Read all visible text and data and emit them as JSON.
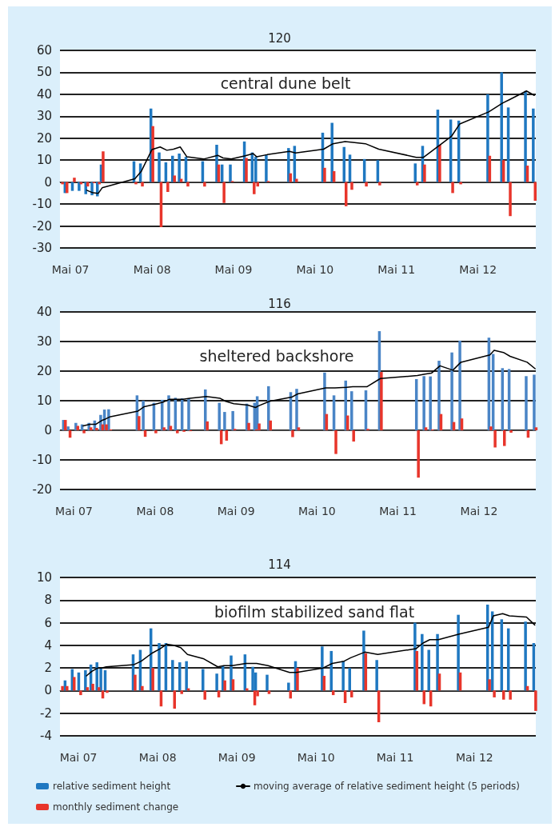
{
  "chart_data": [
    {
      "type": "bar",
      "title": "120",
      "annotations": [
        "central dune belt"
      ],
      "xlim": [
        "2007-03-15",
        "2013-01-15"
      ],
      "xticks": [
        {
          "value": "2007-05-01",
          "label": "Mai 07"
        },
        {
          "value": "2008-05-01",
          "label": "Mai 08"
        },
        {
          "value": "2009-05-01",
          "label": "Mai 09"
        },
        {
          "value": "2010-05-01",
          "label": "Mai 10"
        },
        {
          "value": "2011-05-01",
          "label": "Mai 11"
        },
        {
          "value": "2012-05-01",
          "label": "Mai 12"
        }
      ],
      "ylim": [
        -30,
        60
      ],
      "yticks": [
        -30,
        -20,
        -10,
        0,
        10,
        20,
        30,
        40,
        50,
        60
      ],
      "grid": "y",
      "marker": "none",
      "x": [
        "2007-03-22",
        "2007-04-11",
        "2007-05-14",
        "2007-06-13",
        "2007-07-13",
        "2007-08-10",
        "2007-09-03",
        "2007-09-20",
        "2008-02-14",
        "2008-03-14",
        "2008-04-30",
        "2008-06-06",
        "2008-07-06",
        "2008-08-05",
        "2008-09-04",
        "2008-10-04",
        "2008-12-18",
        "2009-02-19",
        "2009-03-15",
        "2009-04-21",
        "2009-06-23",
        "2009-07-28",
        "2009-08-13",
        "2009-09-29",
        "2010-01-07",
        "2010-02-03",
        "2010-06-09",
        "2010-07-21",
        "2010-09-13",
        "2010-10-09",
        "2010-12-13",
        "2011-02-11",
        "2011-07-29",
        "2011-08-31",
        "2011-11-07",
        "2012-01-04",
        "2012-02-09",
        "2012-06-18",
        "2012-08-19",
        "2012-09-18",
        "2012-12-04",
        "2013-01-08"
      ],
      "series": [
        {
          "color": "#1f78c1",
          "values": [
            null,
            -5,
            -4,
            -4,
            -5.5,
            -6,
            -6.5,
            8,
            9.5,
            8.5,
            33.5,
            13.5,
            9,
            12,
            13,
            11.5,
            9.5,
            17,
            8,
            8,
            18.5,
            13.5,
            11.5,
            12.5,
            15.5,
            16.5,
            22.5,
            27,
            16,
            12.5,
            10.5,
            10,
            8.5,
            16.5,
            33,
            28.5,
            28,
            40,
            50,
            34,
            41.5,
            33.5
          ]
        },
        {
          "color": "#e8352b",
          "values": [
            -1,
            -5,
            2,
            -1,
            -2,
            -0.5,
            -1,
            14,
            -1,
            -2,
            25.5,
            -20.5,
            -4.5,
            3,
            1.5,
            -2,
            -2,
            8,
            -9.5,
            0.5,
            11,
            -5.5,
            -2,
            0.5,
            4,
            1.5,
            6.5,
            5,
            -11,
            -3.5,
            -2,
            -1.5,
            -1.5,
            8,
            17,
            -5,
            -1,
            12,
            10,
            -15.5,
            7.5,
            -8.5
          ]
        },
        {
          "type": "line",
          "color": "#000000",
          "x": [
            "2007-07-13",
            "2007-08-10",
            "2007-09-03",
            "2007-09-20",
            "2008-02-14",
            "2008-03-14",
            "2008-04-30",
            "2008-06-06",
            "2008-07-06",
            "2008-08-05",
            "2008-09-04",
            "2008-10-04",
            "2008-12-18",
            "2009-02-19",
            "2009-03-15",
            "2009-04-21",
            "2009-06-23",
            "2009-07-28",
            "2009-08-13",
            "2009-09-29",
            "2010-01-07",
            "2010-02-03",
            "2010-06-09",
            "2010-07-21",
            "2010-09-13",
            "2010-10-09",
            "2010-12-13",
            "2011-02-11",
            "2011-07-29",
            "2011-08-31",
            "2011-11-07",
            "2012-01-04",
            "2012-02-09",
            "2012-06-18",
            "2012-08-19",
            "2012-09-18",
            "2012-12-04",
            "2013-01-08"
          ],
          "values": [
            -3.7,
            -4.9,
            -5.1,
            -2.6,
            1.5,
            5,
            14.8,
            16,
            14.5,
            15,
            16,
            11.5,
            10.5,
            12.2,
            11,
            10.5,
            12,
            13,
            11.5,
            12.5,
            14,
            13.3,
            15,
            17.5,
            18.5,
            18.2,
            17.5,
            15,
            11.3,
            11.3,
            16.5,
            21,
            26.5,
            32,
            36,
            37.5,
            41.5,
            39.5
          ]
        }
      ]
    },
    {
      "type": "bar",
      "title": "116",
      "annotations": [
        "sheltered backshore"
      ],
      "xlim": [
        "2007-02-27",
        "2013-01-12"
      ],
      "xticks": [
        {
          "value": "2007-05-01",
          "label": "Mai 07"
        },
        {
          "value": "2008-05-01",
          "label": "Mai 08"
        },
        {
          "value": "2009-05-01",
          "label": "Mai 09"
        },
        {
          "value": "2010-05-01",
          "label": "Mai 10"
        },
        {
          "value": "2011-05-01",
          "label": "Mai 11"
        },
        {
          "value": "2012-05-01",
          "label": "Mai 12"
        }
      ],
      "ylim": [
        -20,
        40
      ],
      "yticks": [
        -20,
        -10,
        0,
        10,
        20,
        30,
        40
      ],
      "grid": "y",
      "marker": "none",
      "x": [
        "2007-03-19",
        "2007-04-09",
        "2007-05-14",
        "2007-06-11",
        "2007-07-12",
        "2007-08-07",
        "2007-09-03",
        "2007-09-20",
        "2007-10-09",
        "2008-02-14",
        "2008-03-13",
        "2008-04-30",
        "2008-06-06",
        "2008-07-06",
        "2008-08-05",
        "2008-09-04",
        "2008-10-04",
        "2008-12-18",
        "2009-02-19",
        "2009-03-15",
        "2009-04-21",
        "2009-06-23",
        "2009-07-28",
        "2009-08-09",
        "2009-09-29",
        "2010-01-07",
        "2010-02-03",
        "2010-06-09",
        "2010-07-21",
        "2010-09-12",
        "2010-10-09",
        "2010-12-12",
        "2011-02-11",
        "2011-07-28",
        "2011-08-31",
        "2011-09-29",
        "2011-11-07",
        "2012-01-04",
        "2012-02-09",
        "2012-06-19",
        "2012-07-08",
        "2012-08-19",
        "2012-09-18",
        "2012-12-04",
        "2013-01-09"
      ],
      "series": [
        {
          "color": "#4a85c6",
          "values": [
            3.5,
            1.3,
            2.5,
            2,
            2.5,
            3.3,
            5.2,
            7,
            7.1,
            11.8,
            10,
            9.3,
            10.3,
            11.8,
            11,
            10.8,
            10.8,
            13.8,
            9.3,
            6.2,
            6.5,
            9,
            9.3,
            11.5,
            14.9,
            12.9,
            14,
            19.5,
            11.8,
            16.8,
            13.2,
            13.5,
            33.5,
            17.3,
            18.3,
            18.2,
            23.5,
            26.3,
            30.3,
            31.3,
            25.8,
            21,
            20.7,
            18.3,
            18.8
          ]
        },
        {
          "color": "#e8352b",
          "values": [
            3.5,
            -2.5,
            1.5,
            -1,
            1,
            0.8,
            2,
            2,
            0.3,
            4.8,
            -2.2,
            -1,
            1,
            1.5,
            -1,
            -0.5,
            -0.3,
            3,
            -4.7,
            -3.5,
            0.5,
            2.5,
            0.3,
            2.3,
            3.3,
            -2.3,
            1,
            5.5,
            -8,
            5,
            -3.8,
            0.5,
            19.7,
            -16,
            1,
            0.3,
            5.5,
            2.8,
            4,
            1.3,
            -5.8,
            -5.3,
            -0.8,
            -2.5,
            1
          ]
        },
        {
          "type": "line",
          "color": "#000000",
          "x": [
            "2007-06-11",
            "2007-07-12",
            "2007-08-07",
            "2007-09-03",
            "2007-09-20",
            "2007-10-09",
            "2008-02-14",
            "2008-03-13",
            "2008-04-30",
            "2008-06-06",
            "2008-07-06",
            "2008-08-05",
            "2008-09-04",
            "2008-10-04",
            "2008-12-18",
            "2009-02-19",
            "2009-03-15",
            "2009-04-21",
            "2009-06-23",
            "2009-07-28",
            "2009-08-09",
            "2009-09-29",
            "2010-01-07",
            "2010-02-03",
            "2010-06-09",
            "2010-07-21",
            "2010-09-12",
            "2010-10-09",
            "2010-12-12",
            "2011-02-11",
            "2011-07-28",
            "2011-08-31",
            "2011-09-29",
            "2011-11-07",
            "2012-01-04",
            "2012-02-09",
            "2012-06-19",
            "2012-07-08",
            "2012-08-19",
            "2012-09-18",
            "2012-12-04",
            "2013-01-09"
          ],
          "values": [
            1.5,
            2,
            2,
            3.3,
            3.8,
            4.5,
            6.5,
            8,
            8.8,
            9.5,
            10.5,
            10.5,
            10.5,
            10.8,
            11.4,
            10.8,
            9.8,
            9,
            8.5,
            7.7,
            8.2,
            9.8,
            11.2,
            12.3,
            14.3,
            14.3,
            14.5,
            14.7,
            14.7,
            17.5,
            18.5,
            19,
            19.3,
            21.8,
            20.3,
            23,
            25.5,
            27,
            26.3,
            25,
            23,
            20.8
          ]
        }
      ]
    },
    {
      "type": "bar",
      "title": "114",
      "annotations": [
        "biofilm stabilized sand flat"
      ],
      "xlim": [
        "2007-02-05",
        "2013-02-08"
      ],
      "xticks": [
        {
          "value": "2007-05-01",
          "label": "Mai 07"
        },
        {
          "value": "2008-05-01",
          "label": "Mai 08"
        },
        {
          "value": "2009-05-01",
          "label": "Mai 09"
        },
        {
          "value": "2010-05-01",
          "label": "Mai 10"
        },
        {
          "value": "2011-05-01",
          "label": "Mai 11"
        },
        {
          "value": "2012-05-01",
          "label": "Mai 12"
        }
      ],
      "ylim": [
        -4,
        10
      ],
      "yticks": [
        -4,
        -2,
        0,
        2,
        4,
        6,
        8,
        10
      ],
      "grid": "y",
      "marker": "none",
      "legend": "bottom",
      "x": [
        "2007-02-12",
        "2007-03-05",
        "2007-04-07",
        "2007-05-07",
        "2007-06-07",
        "2007-07-02",
        "2007-07-30",
        "2007-08-17",
        "2007-09-06",
        "2008-01-13",
        "2008-02-15",
        "2008-04-04",
        "2008-05-12",
        "2008-06-12",
        "2008-07-13",
        "2008-08-15",
        "2008-09-15",
        "2008-11-30",
        "2009-02-02",
        "2009-03-02",
        "2009-04-09",
        "2009-06-12",
        "2009-07-18",
        "2009-07-31",
        "2009-09-22",
        "2009-12-30",
        "2010-01-31",
        "2010-06-03",
        "2010-07-15",
        "2010-09-08",
        "2010-10-08",
        "2010-12-12",
        "2011-02-10",
        "2011-08-05",
        "2011-09-07",
        "2011-10-08",
        "2011-11-17",
        "2012-02-21",
        "2012-07-05",
        "2012-07-27",
        "2012-09-08",
        "2012-10-09",
        "2012-12-27",
        "2013-02-03"
      ],
      "series": [
        {
          "name": "relative sediment height",
          "color": "#1f78c1",
          "values": [
            null,
            0.9,
            1.9,
            1.6,
            1.8,
            2.3,
            2.5,
            2,
            1.8,
            3.2,
            3.6,
            5.5,
            4.2,
            4.2,
            2.7,
            2.5,
            2.6,
            1.9,
            1.5,
            2.2,
            3.1,
            3.2,
            2.1,
            1.6,
            1.4,
            0.7,
            2.6,
            3.9,
            3.5,
            2.6,
            2,
            5.3,
            2.7,
            6,
            5,
            3.6,
            5,
            6.7,
            7.6,
            7,
            6.3,
            5.5,
            6.1,
            4.2
          ]
        },
        {
          "name": "monthly sediment change",
          "color": "#e8352b",
          "values": [
            0.4,
            0.4,
            1.2,
            -0.4,
            0.3,
            0.6,
            0.3,
            -0.7,
            -0.2,
            1.4,
            0.4,
            2,
            -1.4,
            null,
            -1.6,
            -0.3,
            0.2,
            -0.8,
            -0.6,
            0.9,
            1,
            0.2,
            -1.3,
            -0.5,
            -0.3,
            -0.7,
            2,
            1.3,
            -0.4,
            -1.1,
            -0.6,
            3.3,
            -2.8,
            3.5,
            -1.2,
            -1.4,
            1.5,
            1.6,
            1,
            -0.6,
            -0.8,
            -0.8,
            0.4,
            -1.8
          ]
        },
        {
          "type": "line",
          "name": "moving average of relative sediment height (5 periods)",
          "color": "#000000",
          "x": [
            "2007-06-07",
            "2007-07-02",
            "2007-07-30",
            "2007-08-17",
            "2007-09-06",
            "2008-01-13",
            "2008-02-15",
            "2008-04-04",
            "2008-05-12",
            "2008-06-12",
            "2008-07-13",
            "2008-08-15",
            "2008-09-15",
            "2008-11-30",
            "2009-02-02",
            "2009-03-02",
            "2009-04-09",
            "2009-06-12",
            "2009-07-18",
            "2009-07-31",
            "2009-09-22",
            "2009-12-30",
            "2010-01-31",
            "2010-06-03",
            "2010-07-15",
            "2010-09-08",
            "2010-10-08",
            "2010-12-12",
            "2011-02-10",
            "2011-08-05",
            "2011-09-07",
            "2011-10-08",
            "2011-11-17",
            "2012-02-21",
            "2012-07-05",
            "2012-07-27",
            "2012-09-08",
            "2012-10-09",
            "2012-12-27",
            "2013-02-03"
          ],
          "values": [
            1.3,
            1.7,
            2,
            2,
            2.1,
            2.3,
            2.6,
            3.3,
            3.7,
            4.1,
            4,
            3.8,
            3.2,
            2.8,
            2.1,
            2.2,
            2.2,
            2.4,
            2.4,
            2.4,
            2.2,
            1.6,
            1.6,
            2,
            2.4,
            2.6,
            2.9,
            3.4,
            3.2,
            3.7,
            4.2,
            4.5,
            4.5,
            5,
            5.6,
            6.6,
            6.8,
            6.6,
            6.5,
            5.8
          ]
        }
      ]
    }
  ]
}
